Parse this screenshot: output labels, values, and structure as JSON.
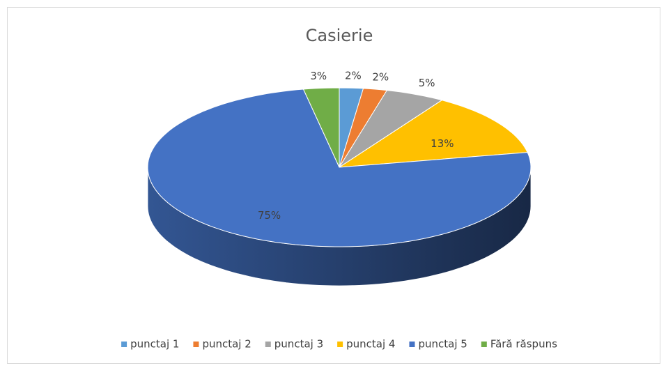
{
  "chart_data": {
    "type": "pie",
    "title": "Casierie",
    "categories": [
      "punctaj 1",
      "punctaj 2",
      "punctaj 3",
      "punctaj 4",
      "punctaj 5",
      "Fără răspuns"
    ],
    "values": [
      2,
      2,
      5,
      13,
      75,
      3
    ],
    "value_labels": [
      "2%",
      "2%",
      "5%",
      "13%",
      "75%",
      "3%"
    ],
    "colors": [
      "#5b9bd5",
      "#ed7d31",
      "#a5a5a5",
      "#ffc000",
      "#4472c4",
      "#70ad47"
    ],
    "legend": "bottom"
  }
}
